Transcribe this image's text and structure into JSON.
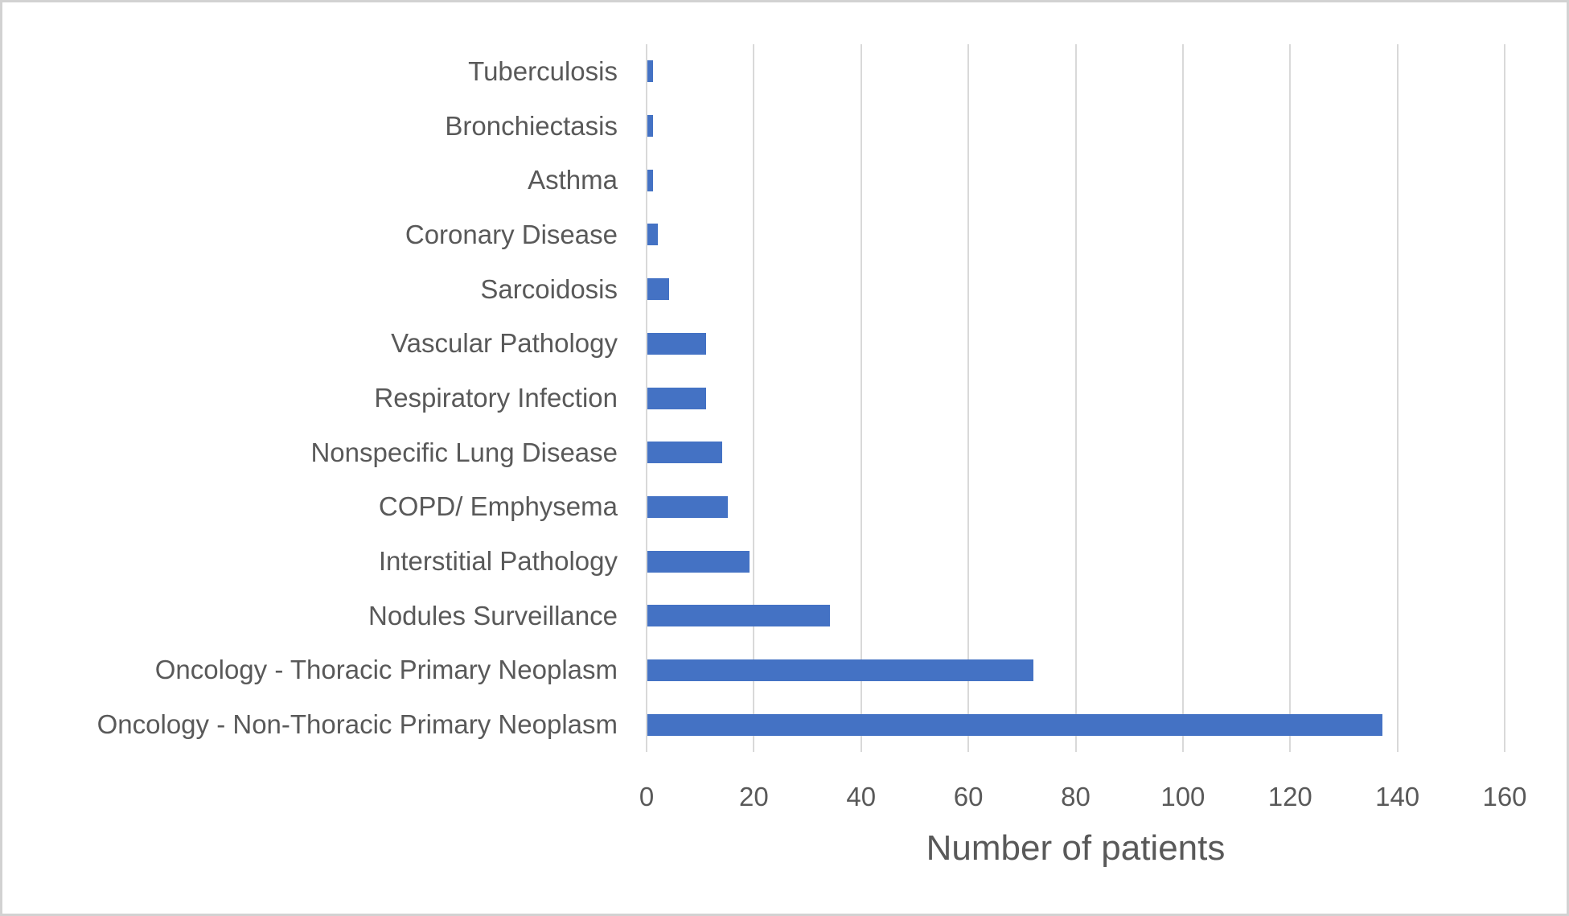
{
  "chart_data": {
    "type": "bar",
    "orientation": "horizontal",
    "title": "",
    "xlabel": "Number of patients",
    "ylabel": "",
    "categories": [
      "Tuberculosis",
      "Bronchiectasis",
      "Asthma",
      "Coronary Disease",
      "Sarcoidosis",
      "Vascular Pathology",
      "Respiratory Infection",
      "Nonspecific Lung Disease",
      "COPD/ Emphysema",
      "Interstitial Pathology",
      "Nodules Surveillance",
      "Oncology - Thoracic Primary Neoplasm",
      "Oncology - Non-Thoracic Primary Neoplasm"
    ],
    "values": [
      1,
      1,
      1,
      2,
      4,
      11,
      11,
      14,
      15,
      19,
      34,
      72,
      137
    ],
    "xlim": [
      0,
      160
    ],
    "x_ticks": [
      "0",
      "20",
      "40",
      "60",
      "80",
      "100",
      "120",
      "140",
      "160"
    ],
    "x_tick_values": [
      0,
      20,
      40,
      60,
      80,
      100,
      120,
      140,
      160
    ],
    "grid": "vertical",
    "legend": "none",
    "colors": {
      "bar": "#4472C4",
      "gridline": "#D9D9D9",
      "text": "#595959",
      "background": "#FFFFFF",
      "frame_border": "#D2D2D2"
    }
  }
}
